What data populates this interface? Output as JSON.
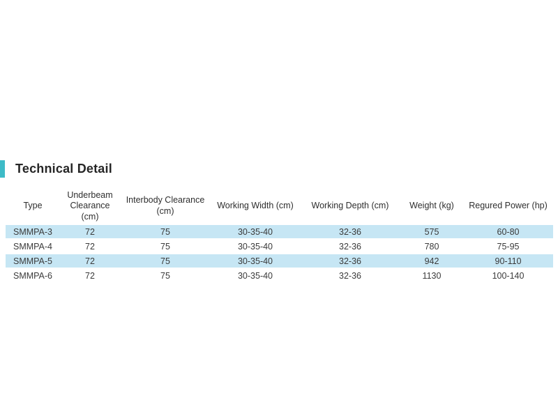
{
  "section": {
    "title": "Technical Detail",
    "accent_color": "#3EBBC7"
  },
  "table": {
    "row_stripe_color": "#C6E6F4",
    "columns": [
      {
        "key": "type",
        "label": "Type"
      },
      {
        "key": "underbeam-clearance",
        "label": "Underbeam\nClearance\n(cm)"
      },
      {
        "key": "interbody-clearance",
        "label": "Interbody Clearance\n(cm)"
      },
      {
        "key": "working-width",
        "label": "Working Width (cm)"
      },
      {
        "key": "working-depth",
        "label": "Working Depth (cm)"
      },
      {
        "key": "weight",
        "label": "Weight (kg)"
      },
      {
        "key": "regured-power",
        "label": "Regured Power (hp)"
      }
    ],
    "rows": [
      [
        "SMMPA-3",
        "72",
        "75",
        "30-35-40",
        "32-36",
        "575",
        "60-80"
      ],
      [
        "SMMPA-4",
        "72",
        "75",
        "30-35-40",
        "32-36",
        "780",
        "75-95"
      ],
      [
        "SMMPA-5",
        "72",
        "75",
        "30-35-40",
        "32-36",
        "942",
        "90-110"
      ],
      [
        "SMMPA-6",
        "72",
        "75",
        "30-35-40",
        "32-36",
        "1130",
        "100-140"
      ]
    ]
  }
}
